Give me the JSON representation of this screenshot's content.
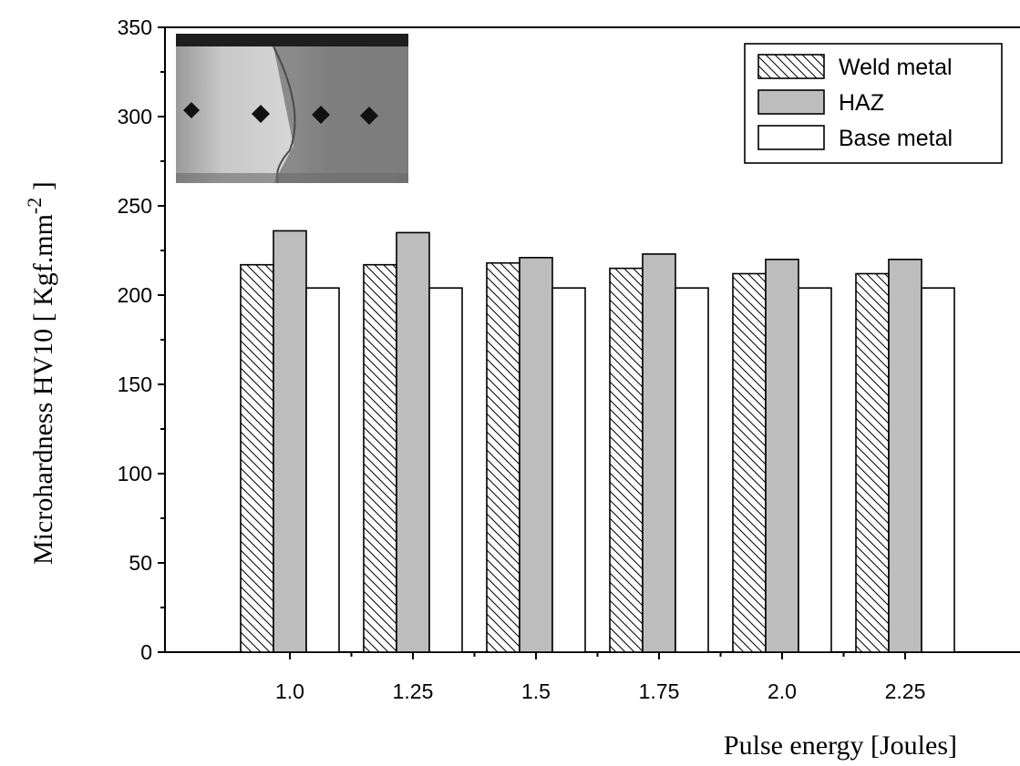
{
  "chart_data": {
    "type": "bar",
    "xlabel": "Pulse energy [Joules]",
    "ylabel": "Microhardness HV10  [ Kgf.mm",
    "ylabel_superscript": "-2",
    "ylabel_suffix": " ]",
    "ylim": [
      0,
      350
    ],
    "yticks": [
      0,
      50,
      100,
      150,
      200,
      250,
      300,
      350
    ],
    "categories": [
      "1.0",
      "1.25",
      "1.5",
      "1.75",
      "2.0",
      "2.25"
    ],
    "series": [
      {
        "name": "Weld metal",
        "values": [
          217,
          217,
          218,
          215,
          212,
          212
        ],
        "fill": "hatch"
      },
      {
        "name": "HAZ",
        "values": [
          236,
          235,
          221,
          223,
          220,
          220
        ],
        "fill": "#bdbdbd"
      },
      {
        "name": "Base metal",
        "values": [
          204,
          204,
          204,
          204,
          204,
          204
        ],
        "fill": "#ffffff"
      }
    ],
    "legend_position": "top-right",
    "grid": false,
    "inset": "micrograph-photo-top-left"
  }
}
